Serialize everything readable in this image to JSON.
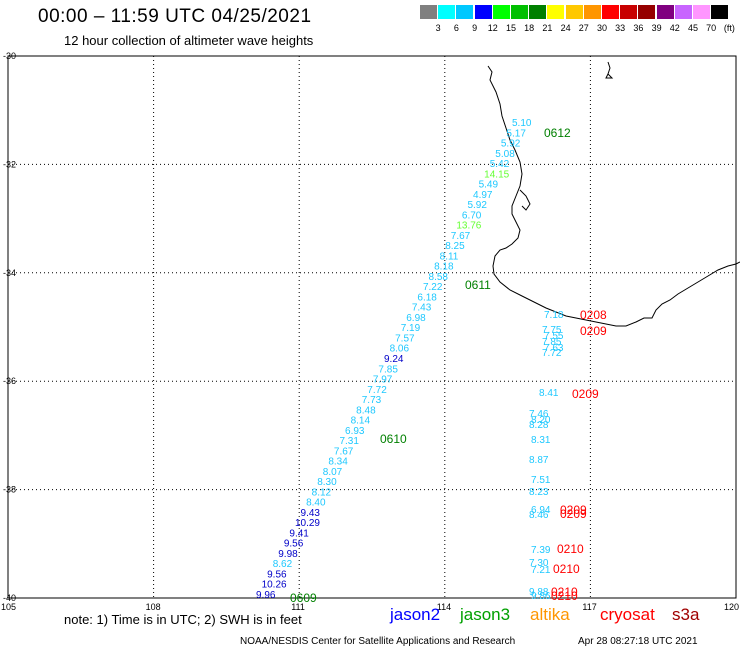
{
  "header": {
    "title": "00:00 – 11:59 UTC 04/25/2021",
    "subtitle": "12 hour collection of altimeter wave heights"
  },
  "legend": {
    "unit": "(ft)",
    "items": [
      {
        "label": "",
        "color": "#808080"
      },
      {
        "label": "3",
        "color": "#00ffff"
      },
      {
        "label": "6",
        "color": "#00c8ff"
      },
      {
        "label": "9",
        "color": "#0000ff"
      },
      {
        "label": "12",
        "color": "#00ff00"
      },
      {
        "label": "15",
        "color": "#00c000"
      },
      {
        "label": "18",
        "color": "#008000"
      },
      {
        "label": "21",
        "color": "#ffff00"
      },
      {
        "label": "24",
        "color": "#ffc800"
      },
      {
        "label": "27",
        "color": "#ff9600"
      },
      {
        "label": "30",
        "color": "#ff0000"
      },
      {
        "label": "33",
        "color": "#c80000"
      },
      {
        "label": "36",
        "color": "#960000"
      },
      {
        "label": "39",
        "color": "#800080"
      },
      {
        "label": "42",
        "color": "#c864ff"
      },
      {
        "label": "45",
        "color": "#ff96ff"
      },
      {
        "label": "70",
        "color": "#000000"
      }
    ]
  },
  "axes": {
    "lat_labels": [
      "-30",
      "-32",
      "-34",
      "-36",
      "-38",
      "-40"
    ],
    "lon_labels": [
      "105",
      "108",
      "111",
      "114",
      "117",
      "120"
    ]
  },
  "tracks": {
    "jason2_color": "#00c8e6",
    "jason3_color": "#00008b",
    "cryosat_color": "#ff0000",
    "time_label_color": "#008000",
    "main_track": [
      {
        "v": "5.10",
        "c": "#1ec8ff"
      },
      {
        "v": "5.17",
        "c": "#1ec8ff"
      },
      {
        "v": "5.92",
        "c": "#1ec8ff"
      },
      {
        "v": "5.08",
        "c": "#1ec8ff"
      },
      {
        "v": "5.42",
        "c": "#1ec8ff"
      },
      {
        "v": "14.15",
        "c": "#64ff32"
      },
      {
        "v": "5.49",
        "c": "#1ec8ff"
      },
      {
        "v": "4.97",
        "c": "#1ec8ff"
      },
      {
        "v": "5.92",
        "c": "#1ec8ff"
      },
      {
        "v": "6.70",
        "c": "#1ec8ff"
      },
      {
        "v": "13.76",
        "c": "#64ff32"
      },
      {
        "v": "7.67",
        "c": "#1ec8ff"
      },
      {
        "v": "8.25",
        "c": "#1ec8ff"
      },
      {
        "v": "8.11",
        "c": "#1ec8ff"
      },
      {
        "v": "8.18",
        "c": "#1ec8ff"
      },
      {
        "v": "8.58",
        "c": "#1ec8ff"
      },
      {
        "v": "7.22",
        "c": "#1ec8ff"
      },
      {
        "v": "6.18",
        "c": "#1ec8ff"
      },
      {
        "v": "7.43",
        "c": "#1ec8ff"
      },
      {
        "v": "6.98",
        "c": "#1ec8ff"
      },
      {
        "v": "7.19",
        "c": "#1ec8ff"
      },
      {
        "v": "7.57",
        "c": "#1ec8ff"
      },
      {
        "v": "8.06",
        "c": "#1ec8ff"
      },
      {
        "v": "9.24",
        "c": "#0000c8"
      },
      {
        "v": "7.85",
        "c": "#1ec8ff"
      },
      {
        "v": "7.97",
        "c": "#1ec8ff"
      },
      {
        "v": "7.72",
        "c": "#1ec8ff"
      },
      {
        "v": "7.73",
        "c": "#1ec8ff"
      },
      {
        "v": "8.48",
        "c": "#1ec8ff"
      },
      {
        "v": "8.14",
        "c": "#1ec8ff"
      },
      {
        "v": "6.93",
        "c": "#1ec8ff"
      },
      {
        "v": "7.31",
        "c": "#1ec8ff"
      },
      {
        "v": "7.67",
        "c": "#1ec8ff"
      },
      {
        "v": "8.34",
        "c": "#1ec8ff"
      },
      {
        "v": "8.07",
        "c": "#1ec8ff"
      },
      {
        "v": "8.30",
        "c": "#1ec8ff"
      },
      {
        "v": "8.12",
        "c": "#1ec8ff"
      },
      {
        "v": "8.40",
        "c": "#1ec8ff"
      },
      {
        "v": "9.43",
        "c": "#0000c8"
      },
      {
        "v": "10.29",
        "c": "#0000c8"
      },
      {
        "v": "9.41",
        "c": "#0000c8"
      },
      {
        "v": "9.56",
        "c": "#0000c8"
      },
      {
        "v": "9.98",
        "c": "#0000c8"
      },
      {
        "v": "8.62",
        "c": "#1ec8ff"
      },
      {
        "v": "9.56",
        "c": "#0000c8"
      },
      {
        "v": "10.26",
        "c": "#0000c8"
      },
      {
        "v": "9.96",
        "c": "#0000c8"
      }
    ],
    "east_track": [
      {
        "v": "7.18",
        "c": "#1ec8ff"
      },
      {
        "v": "7.75",
        "c": "#1ec8ff"
      },
      {
        "v": "7.55",
        "c": "#1ec8ff"
      },
      {
        "v": "7.85",
        "c": "#1ec8ff"
      },
      {
        "v": "7.63",
        "c": "#1ec8ff"
      },
      {
        "v": "7.72",
        "c": "#1ec8ff"
      },
      {
        "v": "8.41",
        "c": "#1ec8ff"
      },
      {
        "v": "7.46",
        "c": "#1ec8ff"
      },
      {
        "v": "8.20",
        "c": "#1ec8ff"
      },
      {
        "v": "8.28",
        "c": "#1ec8ff"
      },
      {
        "v": "8.31",
        "c": "#1ec8ff"
      },
      {
        "v": "8.87",
        "c": "#1ec8ff"
      },
      {
        "v": "7.51",
        "c": "#1ec8ff"
      },
      {
        "v": "8.23",
        "c": "#1ec8ff"
      },
      {
        "v": "6.94",
        "c": "#1ec8ff"
      },
      {
        "v": "8.46",
        "c": "#1ec8ff"
      },
      {
        "v": "7.39",
        "c": "#1ec8ff"
      },
      {
        "v": "7.30",
        "c": "#1ec8ff"
      },
      {
        "v": "7.21",
        "c": "#1ec8ff"
      },
      {
        "v": "9.88",
        "c": "#1ec8ff"
      },
      {
        "v": "9.86",
        "c": "#1ec8ff"
      }
    ],
    "time_labels": [
      {
        "v": "0612",
        "c": "#008000"
      },
      {
        "v": "0611",
        "c": "#008000"
      },
      {
        "v": "0610",
        "c": "#008000"
      },
      {
        "v": "0609",
        "c": "#008000"
      },
      {
        "v": "0208",
        "c": "#ff0000"
      },
      {
        "v": "0209",
        "c": "#ff0000"
      },
      {
        "v": "0209",
        "c": "#ff0000"
      },
      {
        "v": "0209",
        "c": "#ff0000"
      },
      {
        "v": "0209",
        "c": "#ff0000"
      },
      {
        "v": "0210",
        "c": "#ff0000"
      },
      {
        "v": "0210",
        "c": "#ff0000"
      },
      {
        "v": "0210",
        "c": "#ff0000"
      },
      {
        "v": "0210",
        "c": "#ff0000"
      }
    ]
  },
  "footer": {
    "note": "note: 1) Time is in UTC; 2) SWH is in feet",
    "satellites": [
      {
        "name": "jason2",
        "color": "#0000ff"
      },
      {
        "name": "jason3",
        "color": "#00a000"
      },
      {
        "name": "altika",
        "color": "#ff9600"
      },
      {
        "name": "cryosat",
        "color": "#ff0000"
      },
      {
        "name": "s3a",
        "color": "#a00000"
      }
    ],
    "credit": "NOAA/NESDIS Center for Satellite Applications and Research",
    "timestamp": "Apr 28 08:27:18 UTC 2021"
  }
}
